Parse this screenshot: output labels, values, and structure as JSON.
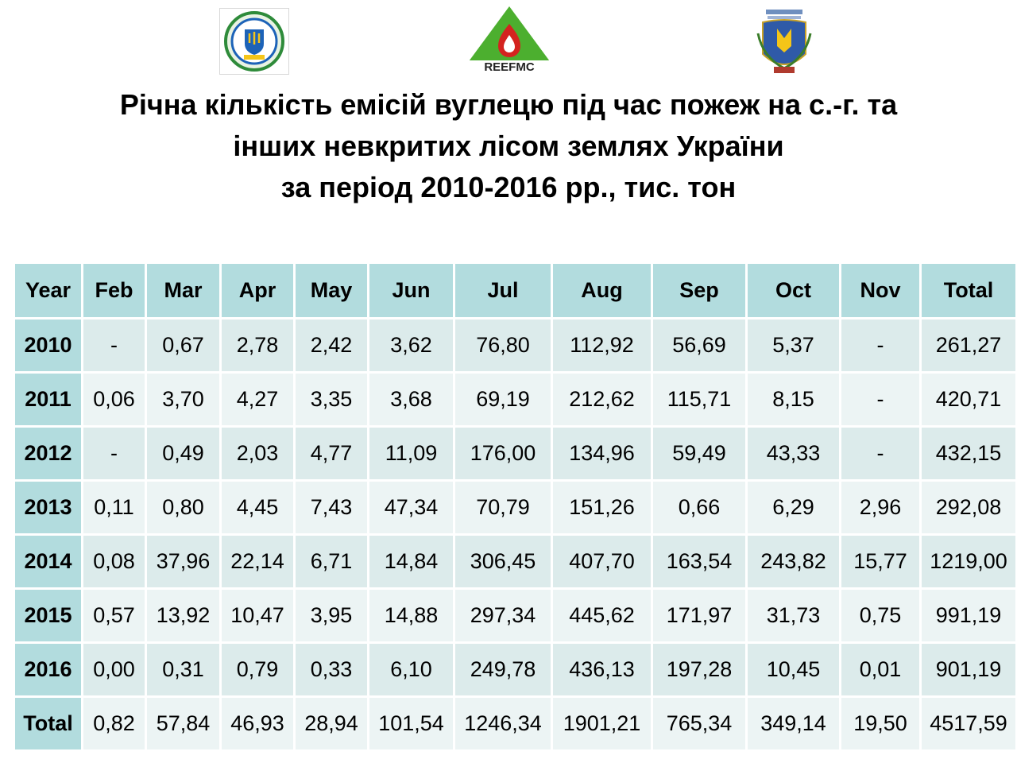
{
  "logos": [
    {
      "name": "university-emblem"
    },
    {
      "name": "reefmc-logo",
      "text": "REEFMC"
    },
    {
      "name": "ukraine-coat-of-arms"
    }
  ],
  "title": {
    "line1": "Річна кількість емісій вуглецю під час пожеж на с.-г. та",
    "line2": "інших невкритих лісом землях України",
    "line3": "за період 2010-2016 рр., тис. тон"
  },
  "table": {
    "headers": [
      "Year",
      "Feb",
      "Mar",
      "Apr",
      "May",
      "Jun",
      "Jul",
      "Aug",
      "Sep",
      "Oct",
      "Nov",
      "Total"
    ],
    "rows": [
      [
        "2010",
        "-",
        "0,67",
        "2,78",
        "2,42",
        "3,62",
        "76,80",
        "112,92",
        "56,69",
        "5,37",
        "-",
        "261,27"
      ],
      [
        "2011",
        "0,06",
        "3,70",
        "4,27",
        "3,35",
        "3,68",
        "69,19",
        "212,62",
        "115,71",
        "8,15",
        "-",
        "420,71"
      ],
      [
        "2012",
        "-",
        "0,49",
        "2,03",
        "4,77",
        "11,09",
        "176,00",
        "134,96",
        "59,49",
        "43,33",
        "-",
        "432,15"
      ],
      [
        "2013",
        "0,11",
        "0,80",
        "4,45",
        "7,43",
        "47,34",
        "70,79",
        "151,26",
        "0,66",
        "6,29",
        "2,96",
        "292,08"
      ],
      [
        "2014",
        "0,08",
        "37,96",
        "22,14",
        "6,71",
        "14,84",
        "306,45",
        "407,70",
        "163,54",
        "243,82",
        "15,77",
        "1219,00"
      ],
      [
        "2015",
        "0,57",
        "13,92",
        "10,47",
        "3,95",
        "14,88",
        "297,34",
        "445,62",
        "171,97",
        "31,73",
        "0,75",
        "991,19"
      ],
      [
        "2016",
        "0,00",
        "0,31",
        "0,79",
        "0,33",
        "6,10",
        "249,78",
        "436,13",
        "197,28",
        "10,45",
        "0,01",
        "901,19"
      ],
      [
        "Total",
        "0,82",
        "57,84",
        "46,93",
        "28,94",
        "101,54",
        "1246,34",
        "1901,21",
        "765,34",
        "349,14",
        "19,50",
        "4517,59"
      ]
    ]
  },
  "colors": {
    "header_bg": "#b2dcde",
    "row_bg_a": "#dcebeb",
    "row_bg_b": "#ecf4f4",
    "logo_green": "#4caf2f",
    "logo_red": "#d4231f"
  }
}
